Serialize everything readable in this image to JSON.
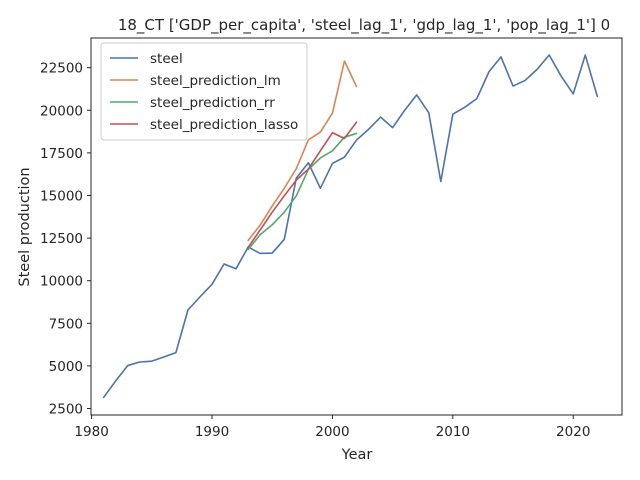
{
  "chart_data": {
    "type": "line",
    "title": "18_CT ['GDP_per_capita', 'steel_lag_1', 'gdp_lag_1', 'pop_lag_1'] 0",
    "xlabel": "Year",
    "ylabel": "Steel production",
    "xlim": [
      1979.95,
      2024.05
    ],
    "ylim": [
      2120,
      24240
    ],
    "xticks": [
      1980,
      1990,
      2000,
      2010,
      2020
    ],
    "yticks": [
      2500,
      5000,
      7500,
      10000,
      12500,
      15000,
      17500,
      20000,
      22500
    ],
    "ytick_labels": [
      "2500",
      "5000",
      "7500",
      "10000",
      "12500",
      "15000",
      "17500",
      "20000",
      "22500"
    ],
    "grid": false,
    "legend_position": "top-left",
    "series": [
      {
        "name": "steel",
        "color": "#4c72b0",
        "points": [
          [
            1981,
            3150
          ],
          [
            1982,
            4120
          ],
          [
            1983,
            5020
          ],
          [
            1984,
            5230
          ],
          [
            1985,
            5280
          ],
          [
            1986,
            5520
          ],
          [
            1987,
            5780
          ],
          [
            1988,
            8280
          ],
          [
            1989,
            9050
          ],
          [
            1990,
            9790
          ],
          [
            1991,
            10980
          ],
          [
            1992,
            10700
          ],
          [
            1993,
            11980
          ],
          [
            1994,
            11600
          ],
          [
            1995,
            11620
          ],
          [
            1996,
            12420
          ],
          [
            1997,
            16020
          ],
          [
            1998,
            16920
          ],
          [
            1999,
            15420
          ],
          [
            2000,
            16880
          ],
          [
            2001,
            17250
          ],
          [
            2002,
            18250
          ],
          [
            2003,
            18880
          ],
          [
            2004,
            19600
          ],
          [
            2005,
            18980
          ],
          [
            2006,
            20000
          ],
          [
            2007,
            20900
          ],
          [
            2008,
            19860
          ],
          [
            2009,
            15820
          ],
          [
            2010,
            19770
          ],
          [
            2011,
            20180
          ],
          [
            2012,
            20690
          ],
          [
            2013,
            22260
          ],
          [
            2014,
            23130
          ],
          [
            2015,
            21420
          ],
          [
            2016,
            21750
          ],
          [
            2017,
            22400
          ],
          [
            2018,
            23240
          ],
          [
            2019,
            22000
          ],
          [
            2020,
            20960
          ],
          [
            2021,
            23240
          ],
          [
            2022,
            20810
          ]
        ]
      },
      {
        "name": "steel_prediction_lm",
        "color": "#dd8452",
        "points": [
          [
            1993,
            12360
          ],
          [
            1994,
            13260
          ],
          [
            1995,
            14380
          ],
          [
            1996,
            15420
          ],
          [
            1997,
            16570
          ],
          [
            1998,
            18260
          ],
          [
            1999,
            18720
          ],
          [
            2000,
            19830
          ],
          [
            2001,
            22890
          ],
          [
            2002,
            21390
          ]
        ]
      },
      {
        "name": "steel_prediction_rr",
        "color": "#55a868",
        "points": [
          [
            1993,
            11820
          ],
          [
            1994,
            12700
          ],
          [
            1995,
            13280
          ],
          [
            1996,
            14020
          ],
          [
            1997,
            14980
          ],
          [
            1998,
            16530
          ],
          [
            1999,
            17200
          ],
          [
            2000,
            17620
          ],
          [
            2001,
            18420
          ],
          [
            2002,
            18640
          ]
        ]
      },
      {
        "name": "steel_prediction_lasso",
        "color": "#c44e52",
        "points": [
          [
            1993,
            11950
          ],
          [
            1994,
            12980
          ],
          [
            1995,
            14020
          ],
          [
            1996,
            14980
          ],
          [
            1997,
            15900
          ],
          [
            1998,
            16550
          ],
          [
            1999,
            17620
          ],
          [
            2000,
            18680
          ],
          [
            2001,
            18350
          ],
          [
            2002,
            19300
          ]
        ]
      }
    ]
  }
}
